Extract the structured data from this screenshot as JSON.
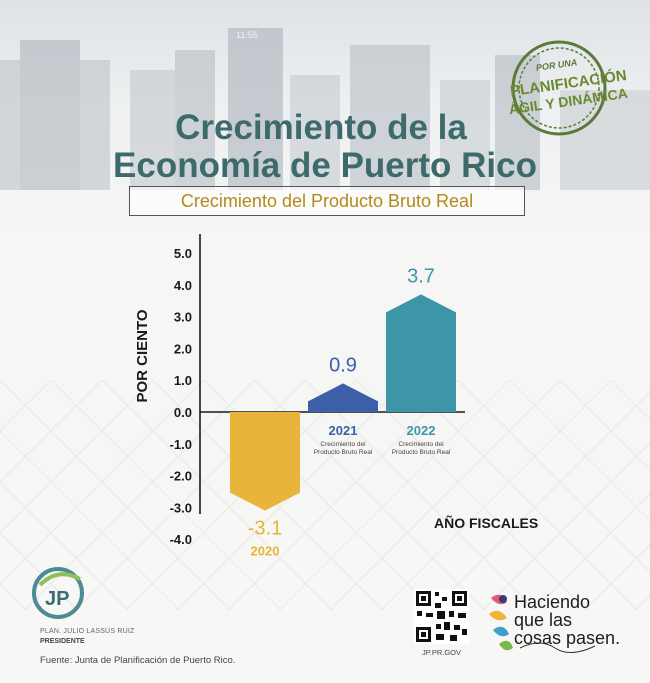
{
  "header": {
    "title_line1": "Crecimiento de la",
    "title_line2": "Economía de Puerto Rico",
    "subtitle": "Crecimiento del Producto Bruto Real"
  },
  "seal": {
    "line1": "POR UNA",
    "line2": "PLANIFICACIÓN",
    "line3": "ÁGIL Y DINÁMICA"
  },
  "background": {
    "tower_sign": "11:55"
  },
  "chart_data": {
    "type": "bar",
    "categories": [
      "2020",
      "2021",
      "2022"
    ],
    "values": [
      -3.1,
      0.9,
      3.7
    ],
    "value_labels": [
      "-3.1",
      "0.9",
      "3.7"
    ],
    "category_sublabel": "Crecimiento del Producto Bruto Real",
    "colors": [
      "#e8b43a",
      "#3d5ea8",
      "#3d96a8"
    ],
    "ylabel": "POR CIENTO",
    "xlabel": "AÑO FISCALES",
    "ylim": [
      -4.0,
      5.0
    ],
    "yticks": [
      "5.0",
      "4.0",
      "3.0",
      "2.0",
      "1.0",
      "0.0",
      "-1.0",
      "-2.0",
      "-3.0",
      "-4.0"
    ],
    "ytick_values": [
      5,
      4,
      3,
      2,
      1,
      0,
      -1,
      -2,
      -3,
      -4
    ],
    "grid": false,
    "legend": "none"
  },
  "footer": {
    "logo_text": "JP",
    "president_name": "PLAN. JULIO LASSÚS RUIZ",
    "president_title": "PRESIDENTE",
    "source": "Fuente: Junta de Planificación de Puerto Rico.",
    "url": "JP.PR.GOV",
    "slogan_lines": [
      "Haciendo",
      "que las",
      "cosas pasen."
    ]
  },
  "colors": {
    "title": "#3d6b6b",
    "subtitle": "#b28a1c",
    "axis": "#1a1a1a",
    "seal": "#5a7a3a"
  }
}
